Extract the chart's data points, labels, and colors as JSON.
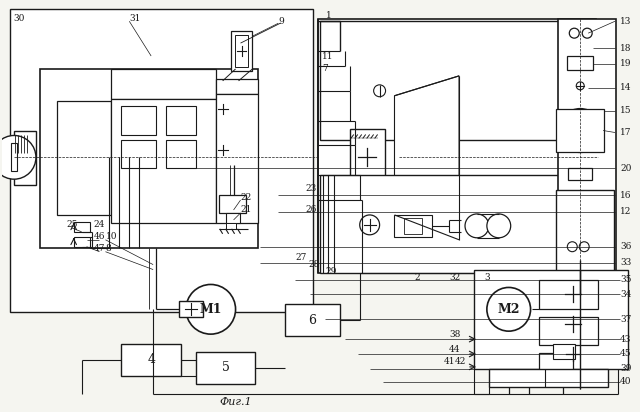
{
  "caption": "Фиг.1",
  "bg_color": "#f5f5f0",
  "line_color": "#1a1a1a",
  "fig_width": 6.4,
  "fig_height": 4.12,
  "dpi": 100
}
